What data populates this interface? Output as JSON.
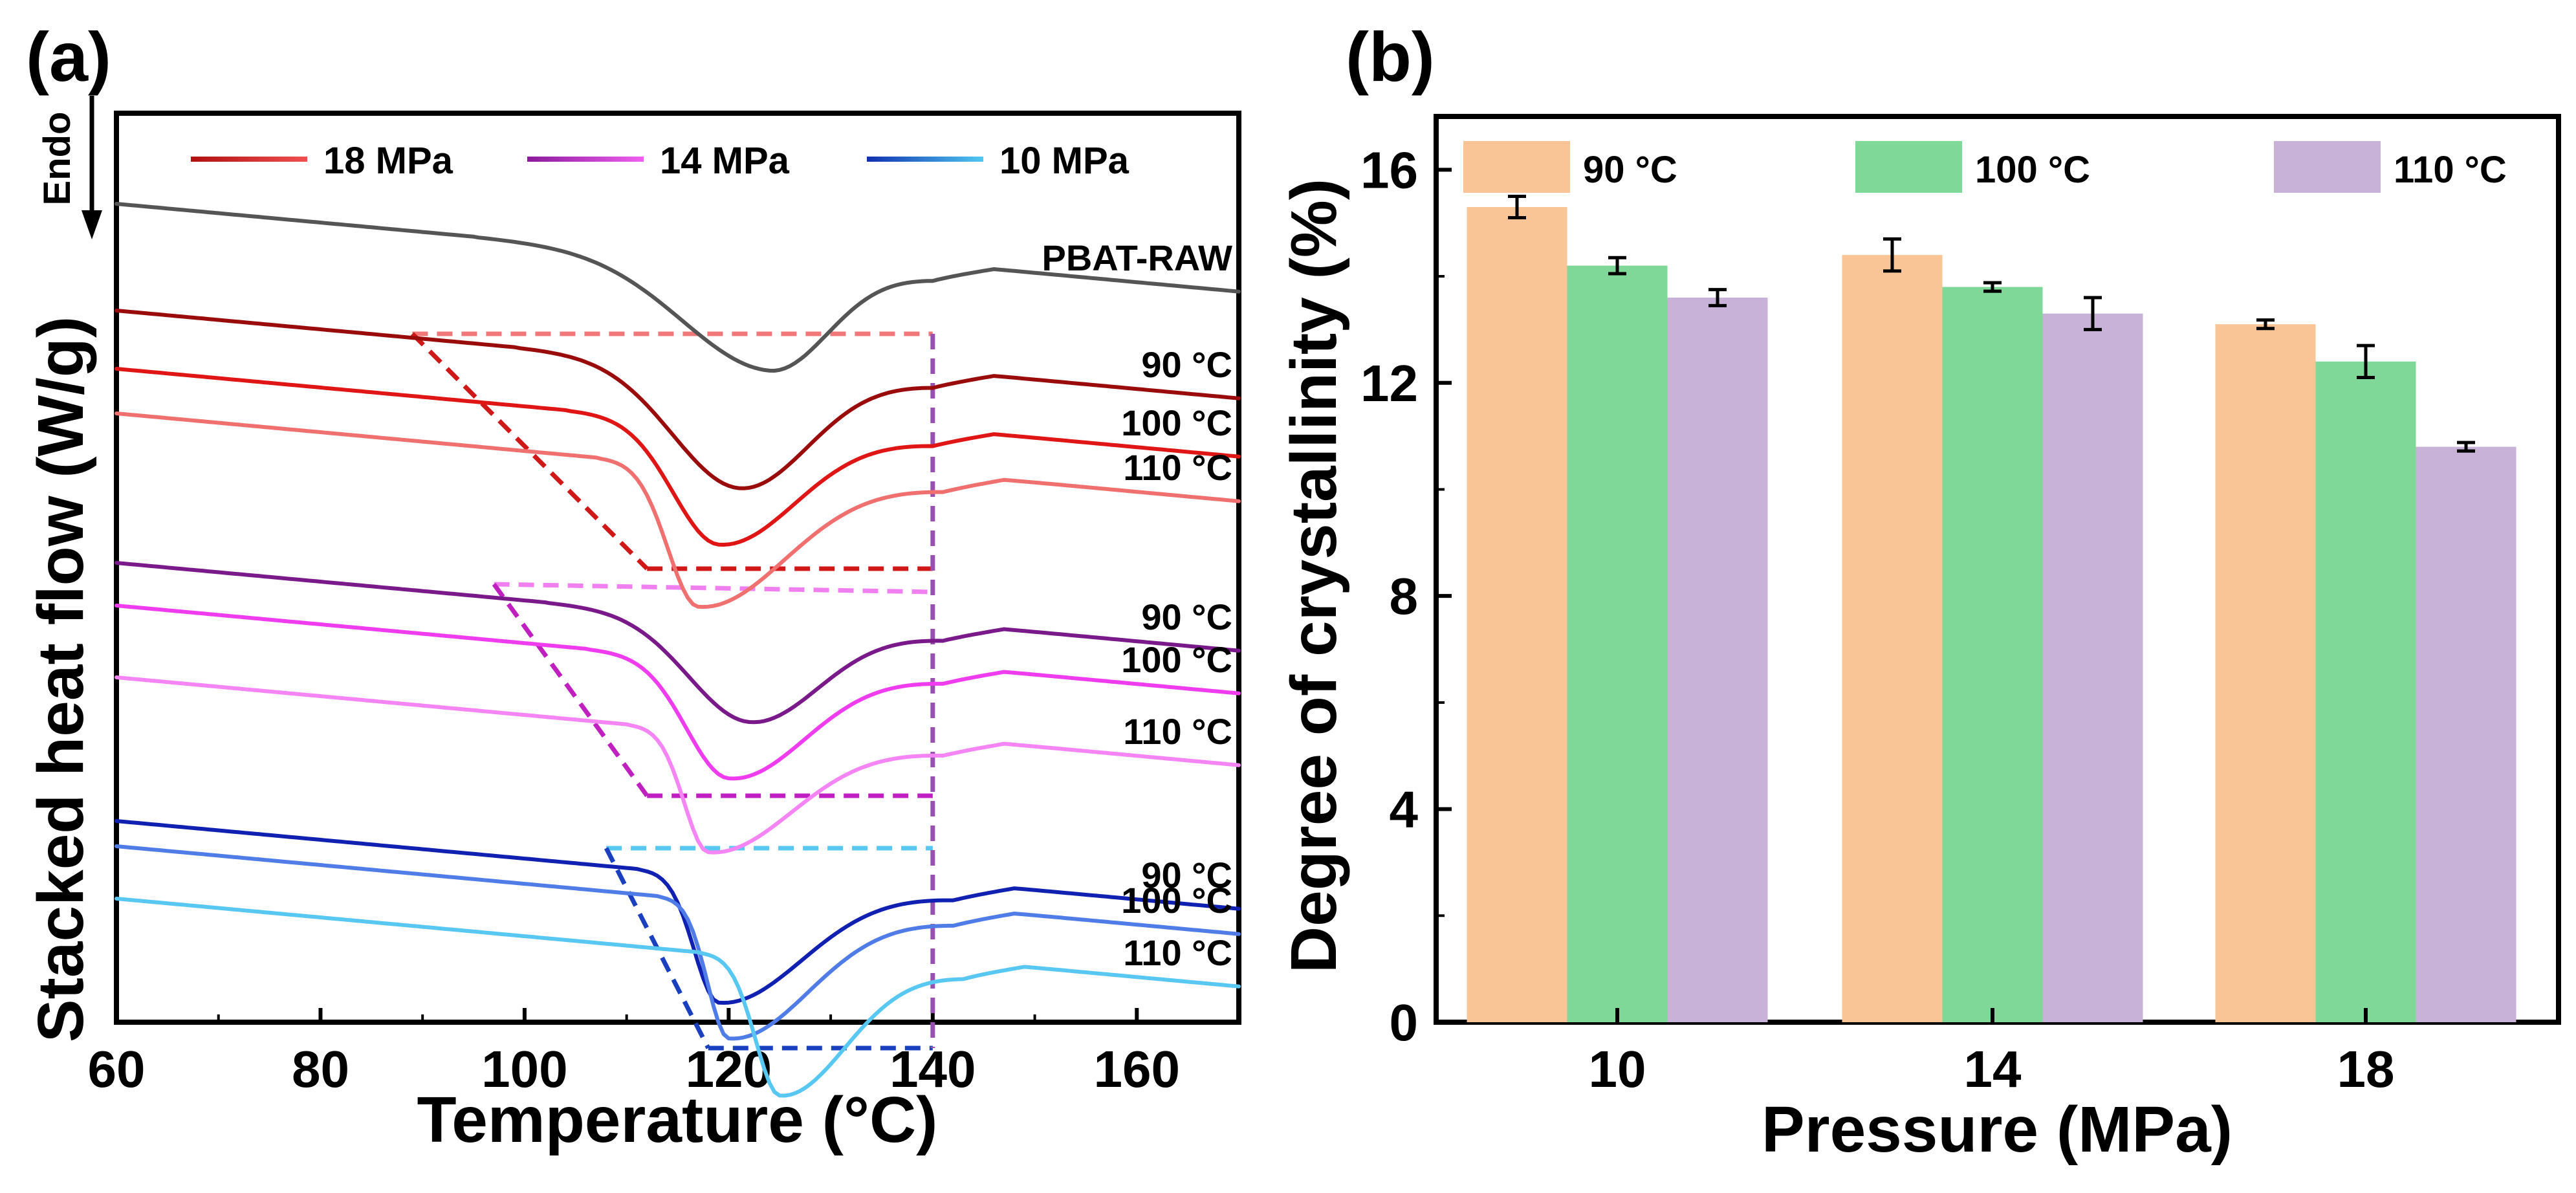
{
  "chart_data": [
    {
      "panel": "(a)",
      "type": "line",
      "xlabel": "Temperature (°C)",
      "ylabel": "Stacked heat flow (W/g)",
      "endo_label": "Endo",
      "xlim": [
        60,
        170
      ],
      "xticks": [
        60,
        80,
        100,
        120,
        140,
        160
      ],
      "legend": [
        {
          "label": "18 MPa",
          "colors": [
            "#b01010",
            "#f05050"
          ]
        },
        {
          "label": "14 MPa",
          "colors": [
            "#8a1a9a",
            "#f060f0"
          ]
        },
        {
          "label": "10 MPa",
          "colors": [
            "#1030b0",
            "#50c8f0"
          ]
        }
      ],
      "series": [
        {
          "name": "PBAT-RAW",
          "label": "PBAT-RAW",
          "color": "#555555",
          "offset": 0.0,
          "onset": 95,
          "tmin": 124,
          "depth": 0.55,
          "end": 140,
          "base_slope": 0.0022
        },
        {
          "name": "18 MPa 90 °C",
          "label": "90 °C",
          "color": "#9a0c0c",
          "offset": 0.55,
          "onset": 99,
          "tmin": 121,
          "depth": 0.62,
          "end": 140,
          "base_slope": 0.0022
        },
        {
          "name": "18 MPa 100 °C",
          "label": "100 °C",
          "color": "#e01515",
          "offset": 0.85,
          "onset": 104,
          "tmin": 119,
          "depth": 0.62,
          "end": 140,
          "base_slope": 0.0022
        },
        {
          "name": "18 MPa 110 °C",
          "label": "110 °C",
          "color": "#f07070",
          "offset": 1.08,
          "onset": 107,
          "tmin": 117,
          "depth": 0.72,
          "end": 141,
          "base_slope": 0.0022
        },
        {
          "name": "14 MPa 90 °C",
          "label": "90 °C",
          "color": "#7a1a8a",
          "offset": 1.85,
          "onset": 102,
          "tmin": 122,
          "depth": 0.52,
          "end": 141,
          "base_slope": 0.0022
        },
        {
          "name": "14 MPa 100 °C",
          "label": "100 °C",
          "color": "#ee3cee",
          "offset": 2.07,
          "onset": 106,
          "tmin": 120,
          "depth": 0.6,
          "end": 141,
          "base_slope": 0.0022
        },
        {
          "name": "14 MPa 110 °C",
          "label": "110 °C",
          "color": "#f585f5",
          "offset": 2.44,
          "onset": 110,
          "tmin": 118,
          "depth": 0.62,
          "end": 141,
          "base_slope": 0.0022
        },
        {
          "name": "10 MPa 90 °C",
          "label": "90 °C",
          "color": "#1020b0",
          "offset": 3.18,
          "onset": 111,
          "tmin": 119,
          "depth": 0.65,
          "end": 142,
          "base_slope": 0.0022
        },
        {
          "name": "10 MPa 100 °C",
          "label": "100 °C",
          "color": "#4f7ce6",
          "offset": 3.31,
          "onset": 113,
          "tmin": 120,
          "depth": 0.7,
          "end": 142,
          "base_slope": 0.0022
        },
        {
          "name": "10 MPa 110 °C",
          "label": "110 °C",
          "color": "#58c8f2",
          "offset": 3.58,
          "onset": 117,
          "tmin": 125,
          "depth": 0.7,
          "end": 143,
          "base_slope": 0.0022
        }
      ],
      "guides": [
        {
          "color": "#d01818",
          "top": [
            89,
            0.67
          ],
          "right_top": [
            140,
            0.67
          ],
          "bottom_left": [
            112,
            1.88
          ],
          "bottom_right": [
            140,
            1.88
          ],
          "right_top_color": "#f07878"
        },
        {
          "color": "#c020c0",
          "top": [
            97,
            1.96
          ],
          "right_top": [
            140,
            2.0
          ],
          "bottom_left": [
            112,
            3.05
          ],
          "bottom_right": [
            140,
            3.05
          ],
          "right_top_color": "#f080f0"
        },
        {
          "color": "#1a40c0",
          "top": [
            108,
            3.32
          ],
          "right_top": [
            140,
            3.32
          ],
          "bottom_left": [
            118,
            4.35
          ],
          "bottom_right": [
            140,
            4.35
          ],
          "right_top_color": "#58c8f2"
        }
      ],
      "vertical_guide": {
        "x": 140,
        "from": 0.67,
        "to": 4.35,
        "color": "#9a50b0"
      }
    },
    {
      "panel": "(b)",
      "type": "bar",
      "xlabel": "Pressure (MPa)",
      "ylabel": "Degree of crystallinity (%)",
      "categories": [
        "10",
        "14",
        "18"
      ],
      "ylim": [
        0,
        17
      ],
      "yticks": [
        0,
        4,
        8,
        12,
        16
      ],
      "series": [
        {
          "name": "90 °C",
          "color": "#f9c596",
          "values": [
            15.3,
            14.4,
            13.1
          ],
          "errors": [
            0.2,
            0.3,
            0.08
          ]
        },
        {
          "name": "100 °C",
          "color": "#7fd897",
          "values": [
            14.2,
            13.8,
            12.4
          ],
          "errors": [
            0.15,
            0.08,
            0.3
          ]
        },
        {
          "name": "110 °C",
          "color": "#c9b2d8",
          "values": [
            13.6,
            13.3,
            10.8
          ],
          "errors": [
            0.15,
            0.3,
            0.08
          ]
        }
      ]
    }
  ]
}
